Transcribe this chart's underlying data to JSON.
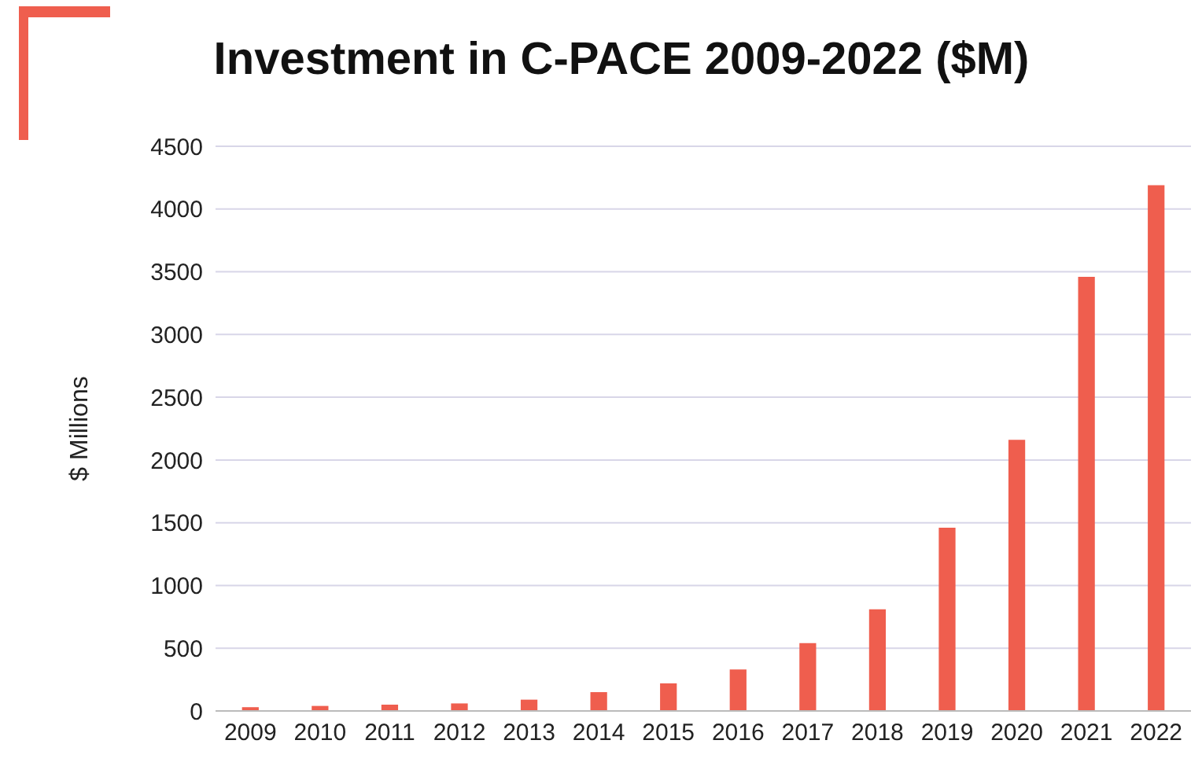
{
  "chart_data": {
    "type": "bar",
    "title": "Investment in C-PACE 2009-2022 ($M)",
    "ylabel": "$ Millions",
    "categories": [
      "2009",
      "2010",
      "2011",
      "2012",
      "2013",
      "2014",
      "2015",
      "2016",
      "2017",
      "2018",
      "2019",
      "2020",
      "2021",
      "2022"
    ],
    "values": [
      30,
      40,
      50,
      60,
      90,
      150,
      220,
      330,
      540,
      810,
      1460,
      2160,
      3460,
      4190
    ],
    "color": "#ef5e4e",
    "ylim": [
      0,
      4500
    ],
    "yticks": [
      0,
      500,
      1000,
      1500,
      2000,
      2500,
      3000,
      3500,
      4000,
      4500
    ],
    "grid": "y"
  }
}
